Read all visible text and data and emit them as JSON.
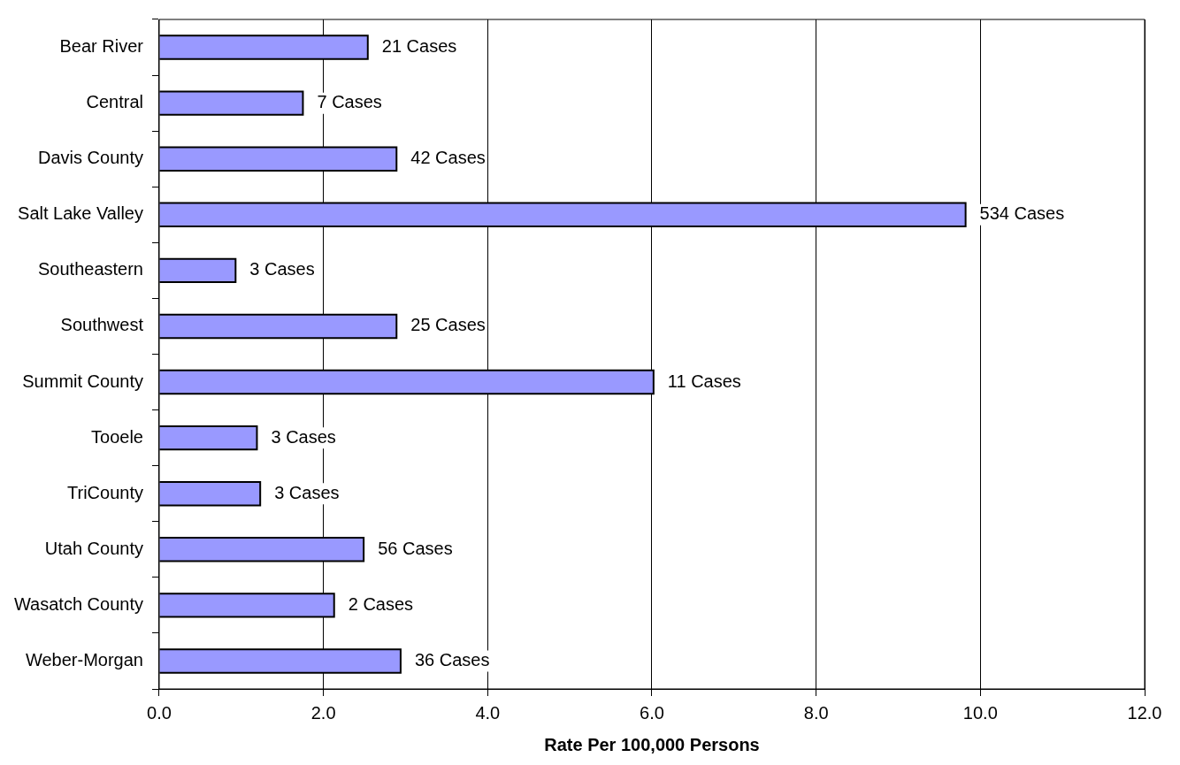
{
  "chart_data": {
    "type": "bar",
    "orientation": "horizontal",
    "xlabel": "Rate Per 100,000 Persons",
    "categories": [
      "Bear River",
      "Central",
      "Davis County",
      "Salt Lake Valley",
      "Southeastern",
      "Southwest",
      "Summit County",
      "Tooele",
      "TriCounty",
      "Utah County",
      "Wasatch County",
      "Weber-Morgan"
    ],
    "values": [
      2.54,
      1.75,
      2.89,
      9.82,
      0.93,
      2.89,
      6.02,
      1.19,
      1.23,
      2.49,
      2.13,
      2.94
    ],
    "annotations": [
      {
        "text": "21 Cases",
        "x": 2.54,
        "y": "Bear River"
      },
      {
        "text": "7 Cases",
        "x": 1.75,
        "y": "Central"
      },
      {
        "text": "42 Cases",
        "x": 2.89,
        "y": "Davis County"
      },
      {
        "text": "534 Cases",
        "x": 9.82,
        "y": "Salt Lake Valley"
      },
      {
        "text": "3 Cases",
        "x": 0.93,
        "y": "Southeastern"
      },
      {
        "text": "25 Cases",
        "x": 2.89,
        "y": "Southwest"
      },
      {
        "text": "11 Cases",
        "x": 6.02,
        "y": "Summit County"
      },
      {
        "text": "3 Cases",
        "x": 1.19,
        "y": "Tooele"
      },
      {
        "text": "3 Cases",
        "x": 1.23,
        "y": "TriCounty"
      },
      {
        "text": "56 Cases",
        "x": 2.49,
        "y": "Utah County"
      },
      {
        "text": "2 Cases",
        "x": 2.13,
        "y": "Wasatch County"
      },
      {
        "text": "36 Cases",
        "x": 2.94,
        "y": "Weber-Morgan"
      }
    ],
    "color": "#9999ff",
    "xlim": [
      0,
      12
    ],
    "xticks": [
      {
        "value": 0,
        "label": "0.0"
      },
      {
        "value": 2,
        "label": "2.0"
      },
      {
        "value": 4,
        "label": "4.0"
      },
      {
        "value": 6,
        "label": "6.0"
      },
      {
        "value": 8,
        "label": "8.0"
      },
      {
        "value": 10,
        "label": "10.0"
      },
      {
        "value": 12,
        "label": "12.0"
      }
    ],
    "grid": "x"
  }
}
